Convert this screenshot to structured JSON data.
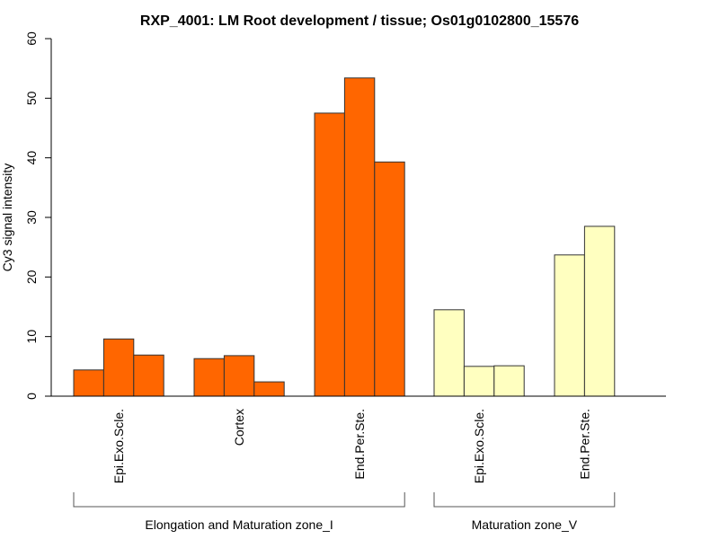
{
  "chart_data": {
    "type": "bar",
    "title": "RXP_4001: LM Root development / tissue; Os01g0102800_15576",
    "xlabel": "",
    "ylabel": "Cy3 signal intensity",
    "ylim": [
      0,
      60
    ],
    "yticks": [
      "0",
      "10",
      "20",
      "30",
      "40",
      "50",
      "60"
    ],
    "grid": false,
    "groups": [
      {
        "label": "Epi.Exo.Scle.",
        "zone": 0,
        "color": "#ff6600",
        "values": [
          4.4,
          9.6,
          6.9
        ]
      },
      {
        "label": "Cortex",
        "zone": 0,
        "color": "#ff6600",
        "values": [
          6.3,
          6.8,
          2.4
        ]
      },
      {
        "label": "End.Per.Ste.",
        "zone": 0,
        "color": "#ff6600",
        "values": [
          47.5,
          53.4,
          39.3
        ]
      },
      {
        "label": "Epi.Exo.Scle.",
        "zone": 1,
        "color": "#ffffc0",
        "values": [
          14.5,
          5.0,
          5.1
        ]
      },
      {
        "label": "End.Per.Ste.",
        "zone": 1,
        "color": "#ffffc0",
        "values": [
          23.7,
          28.5
        ]
      }
    ],
    "zones": [
      {
        "label": "Elongation and Maturation zone_I"
      },
      {
        "label": "Maturation zone_V"
      }
    ]
  }
}
